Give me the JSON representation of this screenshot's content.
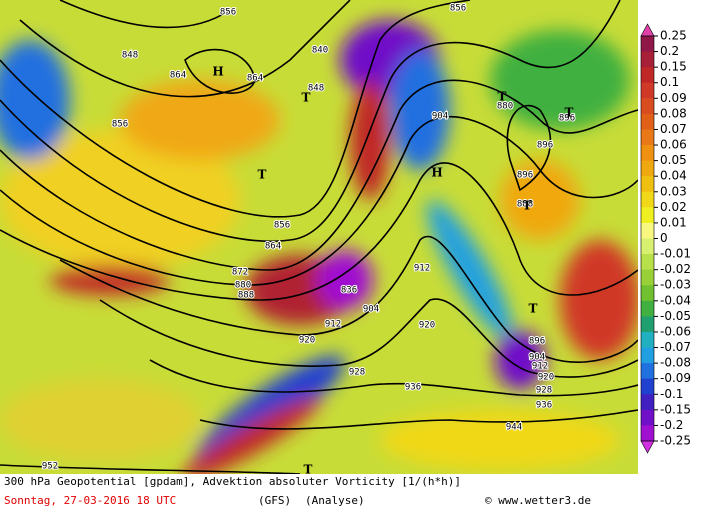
{
  "map": {
    "contour_labels": [
      856,
      848,
      864,
      864,
      840,
      848,
      856,
      856,
      880,
      904,
      896,
      896,
      888,
      896,
      856,
      864,
      872,
      880,
      888,
      912,
      836,
      904,
      912,
      920,
      920,
      928,
      936,
      896,
      904,
      912,
      920,
      928,
      936,
      944,
      952
    ],
    "pressure_centers": [
      "H",
      "T",
      "T",
      "H",
      "T",
      "T",
      "T",
      "T",
      "T"
    ],
    "colorbar": {
      "labels": [
        0.25,
        0.2,
        0.15,
        0.1,
        0.09,
        0.08,
        0.07,
        0.06,
        0.05,
        0.04,
        0.03,
        0.02,
        0.01,
        0,
        -0.01,
        -0.02,
        -0.03,
        -0.04,
        -0.05,
        -0.06,
        -0.07,
        -0.08,
        -0.09,
        -0.1,
        -0.15,
        -0.2,
        -0.25
      ],
      "colors": [
        "#901848",
        "#a82038",
        "#c02828",
        "#d03828",
        "#d84c20",
        "#e06018",
        "#e87818",
        "#f09010",
        "#f0a810",
        "#f0c010",
        "#f0d818",
        "#f0f020",
        "#f8f880",
        "#d8f070",
        "#b8e048",
        "#98d038",
        "#70c030",
        "#40b040",
        "#20a070",
        "#20b0c0",
        "#20a0e0",
        "#2070e0",
        "#2040d0",
        "#4020c0",
        "#7010c8",
        "#a010d0"
      ],
      "over_color": "#e040a8",
      "under_color": "#d030e0"
    },
    "footer": {
      "description": "300 hPa Geopotential [gpdam], Advektion absoluter Vorticity [1/(h*h)]",
      "date": "Sonntag, 27-03-2016  18 UTC",
      "model": "(GFS)",
      "run": "(Analyse)",
      "credit": "© www.wetter3.de"
    }
  }
}
